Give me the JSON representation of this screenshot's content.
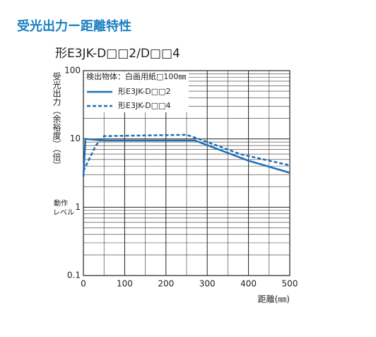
{
  "header": "受光出力ー距離特性",
  "chart_data": {
    "type": "line",
    "title": "形E3JK-D□□2/D□□4",
    "y_label": "受光出力（余裕度）（倍）",
    "x_label": "距離(㎜)",
    "annotation": [
      "動作",
      "レベル"
    ],
    "legend_title": "検出物体：白画用紙□100㎜",
    "legend": "upper left",
    "log_y": true,
    "grid": true,
    "minor_grid": true,
    "xlim": [
      0,
      500
    ],
    "xticks": [
      0,
      100,
      200,
      300,
      400,
      500
    ],
    "ylim": [
      0.1,
      100
    ],
    "yticks": [
      0.1,
      1,
      10,
      100
    ],
    "series": [
      {
        "name": "形E3JK-D□□2",
        "color": "#1e6eb4",
        "dash": "solid",
        "x": [
          0,
          5,
          50,
          270,
          400,
          500
        ],
        "values": [
          2.8,
          10,
          9.5,
          9.5,
          4.8,
          3.2
        ]
      },
      {
        "name": "形E3JK-D□□4",
        "color": "#1e6eb4",
        "dash": "dashed",
        "x": [
          0,
          30,
          50,
          250,
          280,
          380,
          500
        ],
        "values": [
          3.4,
          8,
          11,
          11.5,
          10,
          6,
          4.1
        ]
      }
    ]
  }
}
